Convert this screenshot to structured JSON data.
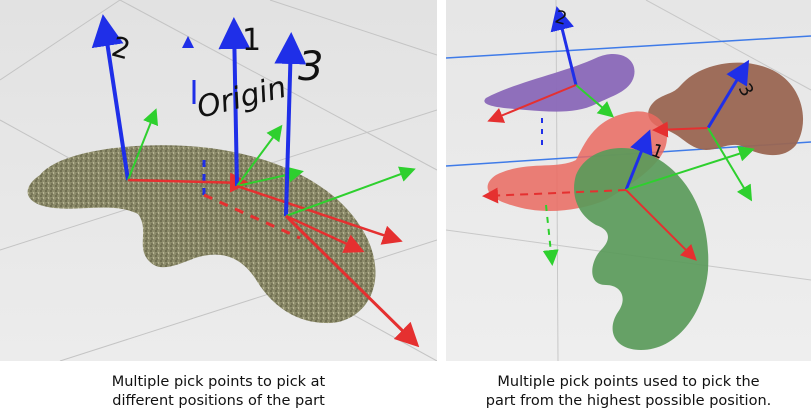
{
  "left_panel": {
    "frame_labels": [
      "2",
      "1",
      "3"
    ],
    "origin_label": "Origin",
    "caption": "Multiple pick points to pick at\ndifferent positions of the part"
  },
  "right_panel": {
    "frame_labels": [
      "2",
      "3",
      "1"
    ],
    "caption": "Multiple pick points used to pick the\npart from the highest possible position."
  },
  "colors": {
    "x_axis": "#e53030",
    "y_axis": "#2ed02e",
    "z_axis": "#1f2fe8",
    "left_part": "#8c8b6a",
    "part_purple": "#8a68b8",
    "part_red": "#ea6a60",
    "part_brown": "#9a6652",
    "part_green": "#5a9a5a",
    "plane_line": "#3f7be8"
  }
}
